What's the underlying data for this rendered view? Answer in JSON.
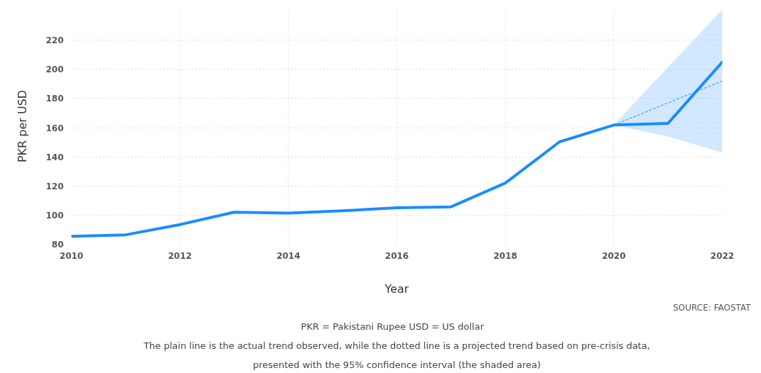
{
  "chart_data": {
    "type": "line",
    "xlabel": "Year",
    "ylabel": "PKR per USD",
    "x": [
      2010,
      2011,
      2012,
      2013,
      2014,
      2015,
      2016,
      2017,
      2018,
      2019,
      2020,
      2021,
      2022
    ],
    "series": [
      {
        "color": "#1a8cff",
        "line_style": "solid",
        "values": [
          85.5,
          86.5,
          93.5,
          102,
          101.4,
          103,
          105,
          105.7,
          122,
          150.3,
          161.8,
          163,
          205
        ]
      },
      {
        "color": "#1a8cff",
        "line_style": "dotted",
        "x": [
          2020,
          2021,
          2022
        ],
        "values": [
          161.8,
          177,
          192
        ],
        "lower": [
          161.8,
          154,
          143
        ],
        "upper": [
          161.8,
          201.5,
          241
        ]
      }
    ],
    "xlim": [
      2010,
      2022
    ],
    "xticks": [
      2010,
      2012,
      2014,
      2016,
      2018,
      2020,
      2022
    ],
    "ylim": [
      80,
      242
    ],
    "yticks": [
      80,
      100,
      120,
      140,
      160,
      180,
      200,
      220
    ],
    "grid": true,
    "marker": "none",
    "annotations": [
      "SOURCE: FAOSTAT",
      "PKR = Pakistani Rupee    USD = US dollar",
      "The plain line is the actual trend observed, while the dotted line is a projected trend based on pre-crisis data, presented with the 95% confidence interval (the shaded area)"
    ]
  }
}
